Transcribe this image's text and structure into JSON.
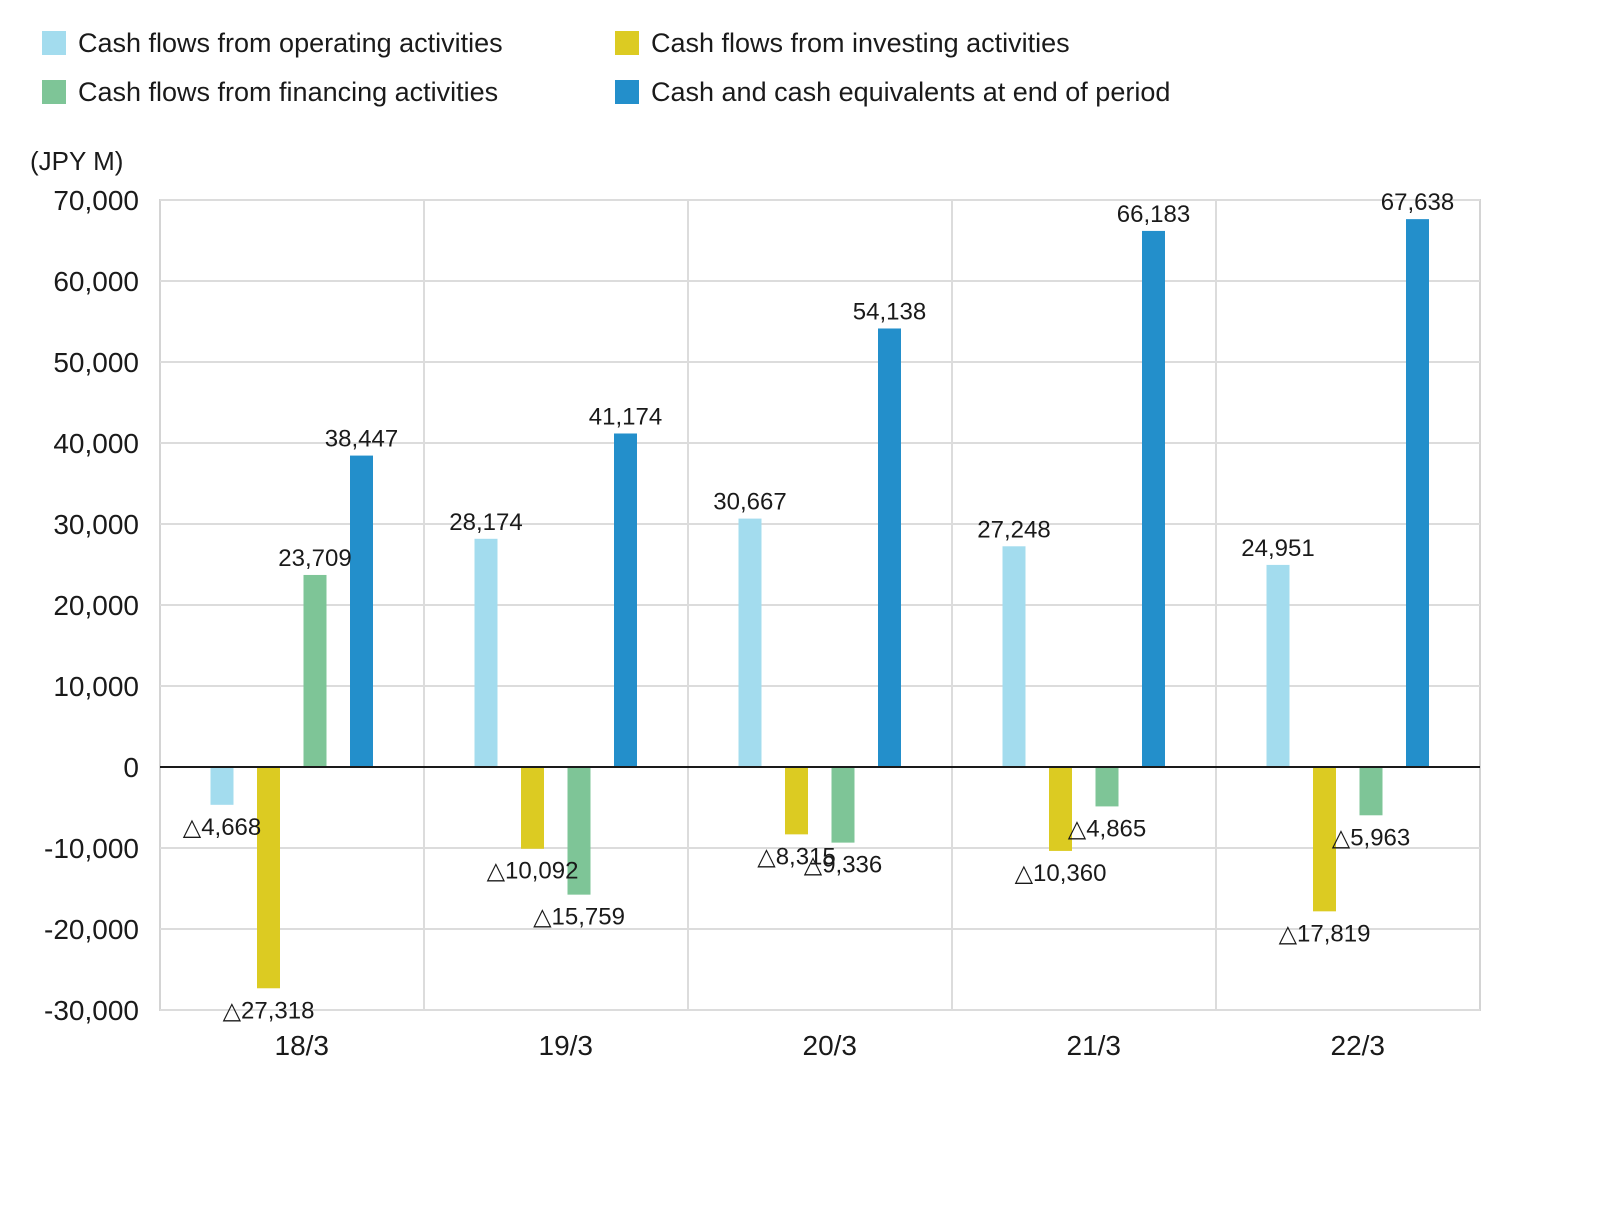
{
  "chart_data": {
    "type": "bar",
    "unit_label": "(JPY M)",
    "categories": [
      "18/3",
      "19/3",
      "20/3",
      "21/3",
      "22/3"
    ],
    "ylim": [
      -30000,
      70000
    ],
    "ytick_step": 10000,
    "yticks": [
      "70,000",
      "60,000",
      "50,000",
      "40,000",
      "30,000",
      "20,000",
      "10,000",
      "0",
      "-10,000",
      "-20,000",
      "-30,000"
    ],
    "grid": true,
    "legend_position": "top-left",
    "series": [
      {
        "name": "Cash flows from operating activities",
        "color": "#a3dcee",
        "values": [
          -4668,
          28174,
          30667,
          27248,
          24951
        ],
        "labels": [
          "△4,668",
          "28,174",
          "30,667",
          "27,248",
          "24,951"
        ]
      },
      {
        "name": "Cash flows from investing activities",
        "color": "#dccb22",
        "values": [
          -27318,
          -10092,
          -8315,
          -10360,
          -17819
        ],
        "labels": [
          "△27,318",
          "△10,092",
          "△8,315",
          "△10,360",
          "△17,819"
        ]
      },
      {
        "name": "Cash flows from financing activities",
        "color": "#7ec597",
        "values": [
          23709,
          -15759,
          -9336,
          -4865,
          -5963
        ],
        "labels": [
          "23,709",
          "△15,759",
          "△9,336",
          "△4,865",
          "△5,963"
        ]
      },
      {
        "name": "Cash and cash equivalents at end of period",
        "color": "#238fcb",
        "values": [
          38447,
          41174,
          54138,
          66183,
          67638
        ],
        "labels": [
          "38,447",
          "41,174",
          "54,138",
          "66,183",
          "67,638"
        ]
      }
    ]
  }
}
